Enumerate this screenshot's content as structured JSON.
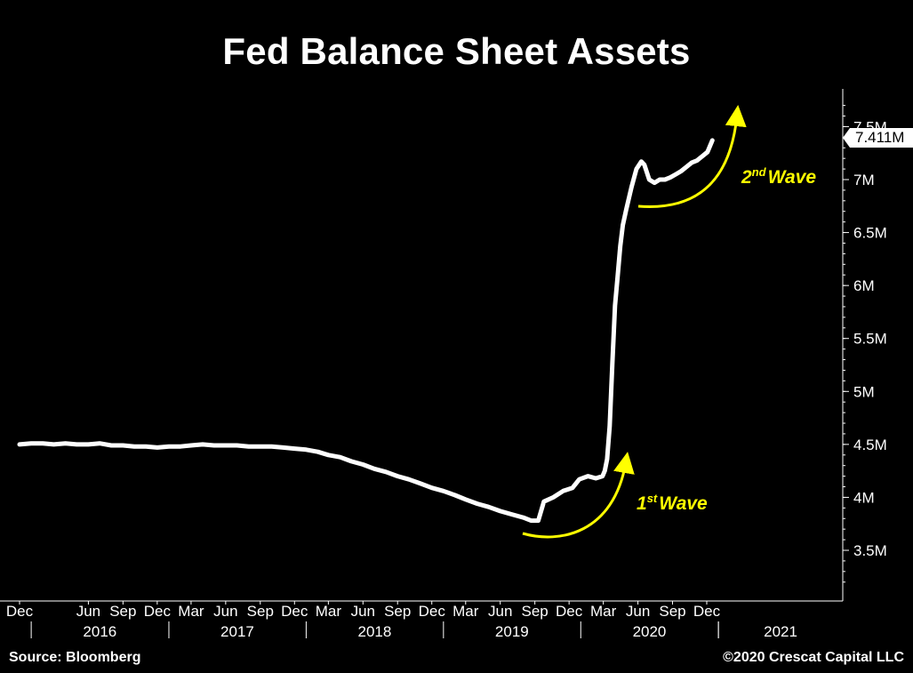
{
  "title": "Fed Balance Sheet Assets",
  "footer": {
    "source": "Source: Bloomberg",
    "copyright": "©2020 Crescat Capital LLC"
  },
  "annotations": {
    "wave1_ordinal": "1",
    "wave1_sup": "st",
    "wave1_word": "Wave",
    "wave2_ordinal": "2",
    "wave2_sup": "nd",
    "wave2_word": "Wave"
  },
  "colors": {
    "background": "#000000",
    "line": "#ffffff",
    "annotation": "#ffff00"
  },
  "chart_data": {
    "type": "line",
    "title": "Fed Balance Sheet Assets",
    "last_value_label": "7.411M",
    "y_ticks": [
      {
        "value": 3.5,
        "label": "3.5M"
      },
      {
        "value": 4.0,
        "label": "4M"
      },
      {
        "value": 4.5,
        "label": "4.5M"
      },
      {
        "value": 5.0,
        "label": "5M"
      },
      {
        "value": 5.5,
        "label": "5.5M"
      },
      {
        "value": 6.0,
        "label": "6M"
      },
      {
        "value": 6.5,
        "label": "6.5M"
      },
      {
        "value": 7.0,
        "label": "7M"
      },
      {
        "value": 7.5,
        "label": "7.5M"
      }
    ],
    "y_unit": "millions (M)",
    "ylim": [
      3.1,
      8.0
    ],
    "xlim": [
      "2015-12-01",
      "2021-12-31"
    ],
    "x_month_ticks": [
      {
        "date": "2015-12-01",
        "label": "Dec"
      },
      {
        "date": "2016-06-01",
        "label": "Jun"
      },
      {
        "date": "2016-09-01",
        "label": "Sep"
      },
      {
        "date": "2016-12-01",
        "label": "Dec"
      },
      {
        "date": "2017-03-01",
        "label": "Mar"
      },
      {
        "date": "2017-06-01",
        "label": "Jun"
      },
      {
        "date": "2017-09-01",
        "label": "Sep"
      },
      {
        "date": "2017-12-01",
        "label": "Dec"
      },
      {
        "date": "2018-03-01",
        "label": "Mar"
      },
      {
        "date": "2018-06-01",
        "label": "Jun"
      },
      {
        "date": "2018-09-01",
        "label": "Sep"
      },
      {
        "date": "2018-12-01",
        "label": "Dec"
      },
      {
        "date": "2019-03-01",
        "label": "Mar"
      },
      {
        "date": "2019-06-01",
        "label": "Jun"
      },
      {
        "date": "2019-09-01",
        "label": "Sep"
      },
      {
        "date": "2019-12-01",
        "label": "Dec"
      },
      {
        "date": "2020-03-01",
        "label": "Mar"
      },
      {
        "date": "2020-06-01",
        "label": "Jun"
      },
      {
        "date": "2020-09-01",
        "label": "Sep"
      },
      {
        "date": "2020-12-01",
        "label": "Dec"
      }
    ],
    "x_year_labels": [
      {
        "label": "2016",
        "start": "2016-01-01",
        "end": "2016-12-31"
      },
      {
        "label": "2017",
        "start": "2017-01-01",
        "end": "2017-12-31"
      },
      {
        "label": "2018",
        "start": "2018-01-01",
        "end": "2018-12-31"
      },
      {
        "label": "2019",
        "start": "2019-01-01",
        "end": "2019-12-31"
      },
      {
        "label": "2020",
        "start": "2020-01-01",
        "end": "2020-12-31"
      },
      {
        "label": "2021",
        "start": "2021-01-01",
        "end": "2021-12-31"
      }
    ],
    "series": [
      {
        "values": [
          [
            "2015-12-01",
            4.5
          ],
          [
            "2016-01-01",
            4.51
          ],
          [
            "2016-02-01",
            4.51
          ],
          [
            "2016-03-01",
            4.5
          ],
          [
            "2016-04-01",
            4.51
          ],
          [
            "2016-05-01",
            4.5
          ],
          [
            "2016-06-01",
            4.5
          ],
          [
            "2016-07-01",
            4.51
          ],
          [
            "2016-08-01",
            4.49
          ],
          [
            "2016-09-01",
            4.49
          ],
          [
            "2016-10-01",
            4.48
          ],
          [
            "2016-11-01",
            4.48
          ],
          [
            "2016-12-01",
            4.47
          ],
          [
            "2017-01-01",
            4.48
          ],
          [
            "2017-02-01",
            4.48
          ],
          [
            "2017-03-01",
            4.49
          ],
          [
            "2017-04-01",
            4.5
          ],
          [
            "2017-05-01",
            4.49
          ],
          [
            "2017-06-01",
            4.49
          ],
          [
            "2017-07-01",
            4.49
          ],
          [
            "2017-08-01",
            4.48
          ],
          [
            "2017-09-01",
            4.48
          ],
          [
            "2017-10-01",
            4.48
          ],
          [
            "2017-11-01",
            4.47
          ],
          [
            "2017-12-01",
            4.46
          ],
          [
            "2018-01-01",
            4.45
          ],
          [
            "2018-02-01",
            4.43
          ],
          [
            "2018-03-01",
            4.4
          ],
          [
            "2018-04-01",
            4.38
          ],
          [
            "2018-05-01",
            4.34
          ],
          [
            "2018-06-01",
            4.31
          ],
          [
            "2018-07-01",
            4.27
          ],
          [
            "2018-08-01",
            4.24
          ],
          [
            "2018-09-01",
            4.2
          ],
          [
            "2018-10-01",
            4.17
          ],
          [
            "2018-11-01",
            4.13
          ],
          [
            "2018-12-01",
            4.09
          ],
          [
            "2019-01-01",
            4.06
          ],
          [
            "2019-02-01",
            4.02
          ],
          [
            "2019-03-01",
            3.98
          ],
          [
            "2019-04-01",
            3.94
          ],
          [
            "2019-05-01",
            3.91
          ],
          [
            "2019-06-01",
            3.87
          ],
          [
            "2019-07-01",
            3.84
          ],
          [
            "2019-08-01",
            3.81
          ],
          [
            "2019-08-22",
            3.78
          ],
          [
            "2019-09-10",
            3.78
          ],
          [
            "2019-09-25",
            3.96
          ],
          [
            "2019-10-20",
            4.0
          ],
          [
            "2019-11-15",
            4.06
          ],
          [
            "2019-12-10",
            4.09
          ],
          [
            "2019-12-28",
            4.17
          ],
          [
            "2020-01-20",
            4.2
          ],
          [
            "2020-02-10",
            4.18
          ],
          [
            "2020-02-28",
            4.2
          ],
          [
            "2020-03-05",
            4.25
          ],
          [
            "2020-03-11",
            4.36
          ],
          [
            "2020-03-18",
            4.67
          ],
          [
            "2020-03-25",
            5.26
          ],
          [
            "2020-04-01",
            5.81
          ],
          [
            "2020-04-08",
            6.08
          ],
          [
            "2020-04-15",
            6.37
          ],
          [
            "2020-04-22",
            6.57
          ],
          [
            "2020-05-01",
            6.72
          ],
          [
            "2020-05-15",
            6.93
          ],
          [
            "2020-05-28",
            7.1
          ],
          [
            "2020-06-10",
            7.17
          ],
          [
            "2020-06-18",
            7.14
          ],
          [
            "2020-07-01",
            7.0
          ],
          [
            "2020-07-15",
            6.97
          ],
          [
            "2020-07-29",
            7.0
          ],
          [
            "2020-08-12",
            7.0
          ],
          [
            "2020-08-26",
            7.02
          ],
          [
            "2020-09-10",
            7.05
          ],
          [
            "2020-09-24",
            7.08
          ],
          [
            "2020-10-08",
            7.12
          ],
          [
            "2020-10-22",
            7.16
          ],
          [
            "2020-11-05",
            7.18
          ],
          [
            "2020-11-19",
            7.22
          ],
          [
            "2020-12-03",
            7.26
          ],
          [
            "2020-12-16",
            7.37
          ]
        ]
      }
    ],
    "grid": false,
    "legend": "none"
  }
}
